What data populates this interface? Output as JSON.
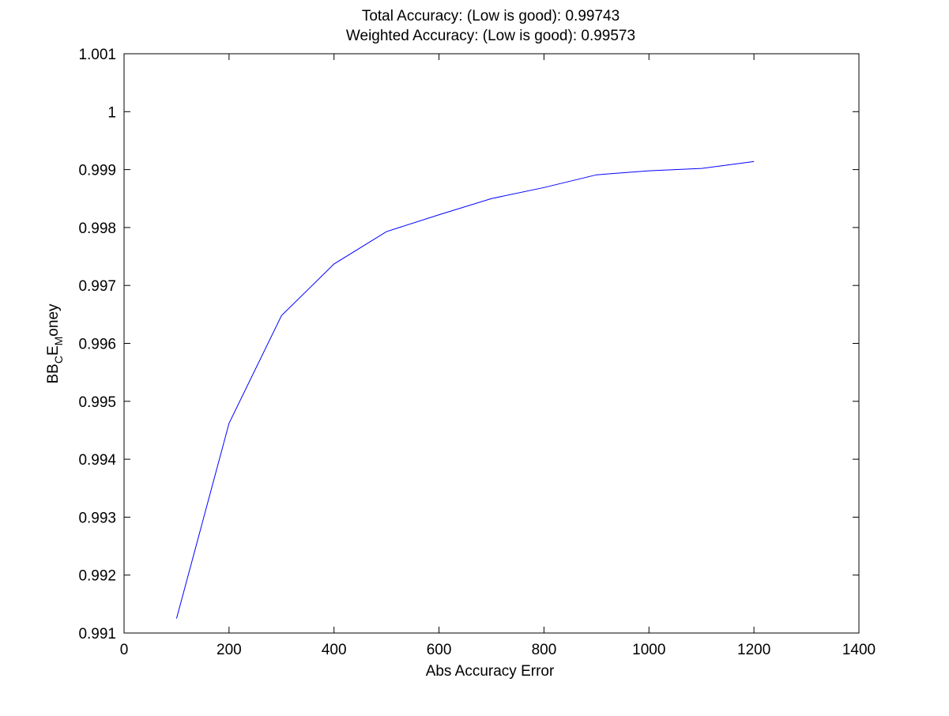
{
  "chart_data": {
    "type": "line",
    "title_lines": [
      "Total Accuracy: (Low is good): 0.99743",
      "Weighted Accuracy: (Low is good): 0.99573"
    ],
    "xlabel": "Abs Accuracy Error",
    "ylabel": {
      "parts": [
        {
          "text": "BB",
          "sub": false
        },
        {
          "text": "C",
          "sub": true
        },
        {
          "text": "E",
          "sub": false
        },
        {
          "text": "M",
          "sub": true
        },
        {
          "text": "oney",
          "sub": false
        }
      ]
    },
    "xlim": [
      0,
      1400
    ],
    "ylim": [
      0.991,
      1.001
    ],
    "x_ticks": [
      0,
      200,
      400,
      600,
      800,
      1000,
      1200,
      1400
    ],
    "x_tick_labels": [
      "0",
      "200",
      "400",
      "600",
      "800",
      "1000",
      "1200",
      "1400"
    ],
    "y_ticks": [
      0.991,
      0.992,
      0.993,
      0.994,
      0.995,
      0.996,
      0.997,
      0.998,
      0.999,
      1.0,
      1.001
    ],
    "y_tick_labels": [
      "0.991",
      "0.992",
      "0.993",
      "0.994",
      "0.995",
      "0.996",
      "0.997",
      "0.998",
      "0.999",
      "1",
      "1.001"
    ],
    "grid": false,
    "series": [
      {
        "color": "#0000ff",
        "x": [
          100,
          200,
          300,
          400,
          500,
          600,
          700,
          800,
          900,
          1000,
          1100,
          1200
        ],
        "y": [
          0.99125,
          0.99462,
          0.99648,
          0.99737,
          0.99793,
          0.99822,
          0.9985,
          0.99869,
          0.99891,
          0.99898,
          0.99902,
          0.99914
        ]
      }
    ]
  }
}
